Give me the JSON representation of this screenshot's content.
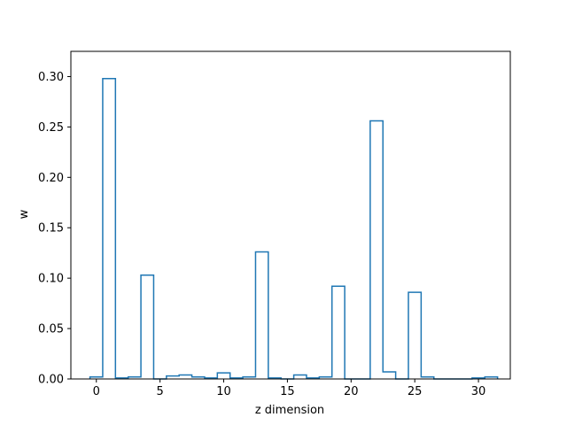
{
  "chart_data": {
    "type": "bar",
    "style": "step-histogram",
    "title": "",
    "xlabel": "z dimension",
    "ylabel": "w",
    "xlim": [
      -2.0,
      32.5
    ],
    "ylim": [
      0,
      0.325
    ],
    "x_ticks": [
      0,
      5,
      10,
      15,
      20,
      25,
      30
    ],
    "y_ticks": [
      0.0,
      0.05,
      0.1,
      0.15,
      0.2,
      0.25,
      0.3
    ],
    "x_tick_labels": [
      "0",
      "5",
      "10",
      "15",
      "20",
      "25",
      "30"
    ],
    "y_tick_labels": [
      "0.00",
      "0.05",
      "0.10",
      "0.15",
      "0.20",
      "0.25",
      "0.30"
    ],
    "categories": [
      0,
      1,
      2,
      3,
      4,
      5,
      6,
      7,
      8,
      9,
      10,
      11,
      12,
      13,
      14,
      15,
      16,
      17,
      18,
      19,
      20,
      21,
      22,
      23,
      24,
      25,
      26,
      27,
      28,
      29,
      30,
      31
    ],
    "values": [
      0.002,
      0.298,
      0.001,
      0.002,
      0.103,
      0.0,
      0.003,
      0.004,
      0.002,
      0.001,
      0.006,
      0.001,
      0.002,
      0.126,
      0.001,
      0.0,
      0.004,
      0.001,
      0.002,
      0.092,
      0.0,
      0.0,
      0.256,
      0.007,
      0.0,
      0.086,
      0.002,
      0.0,
      0.0,
      0.0,
      0.001,
      0.002
    ],
    "grid": false,
    "line_color": "#1f77b4"
  }
}
